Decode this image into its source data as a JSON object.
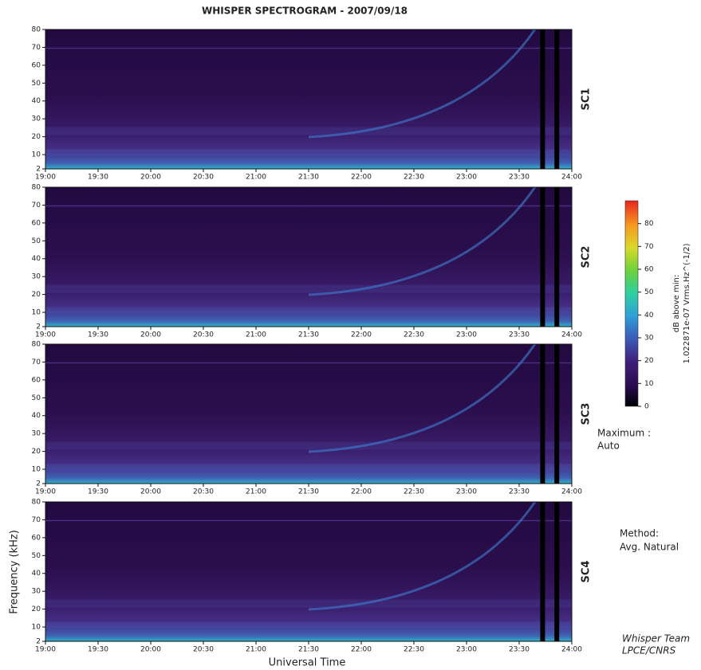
{
  "title": "WHISPER SPECTROGRAM - 2007/09/18",
  "y_label": "Frequency (kHz)",
  "x_label": "Universal Time",
  "chart_data": [
    {
      "type": "heatmap",
      "panel_label": "SC1",
      "xlim": [
        19,
        24
      ],
      "ylim": [
        2,
        80
      ],
      "xticks": [
        {
          "value": 19,
          "label": "19:00"
        },
        {
          "value": 19.5,
          "label": "19:30"
        },
        {
          "value": 20,
          "label": "20:00"
        },
        {
          "value": 20.5,
          "label": "20:30"
        },
        {
          "value": 21,
          "label": "21:00"
        },
        {
          "value": 21.5,
          "label": "21:30"
        },
        {
          "value": 22,
          "label": "22:00"
        },
        {
          "value": 22.5,
          "label": "22:30"
        },
        {
          "value": 23,
          "label": "23:00"
        },
        {
          "value": 23.5,
          "label": "23:30"
        },
        {
          "value": 24,
          "label": "24:00"
        }
      ],
      "yticks": [
        2,
        10,
        20,
        30,
        40,
        50,
        60,
        70,
        80
      ]
    },
    {
      "type": "heatmap",
      "panel_label": "SC2",
      "xlim": [
        19,
        24
      ],
      "ylim": [
        2,
        80
      ],
      "xticks": [
        {
          "value": 19,
          "label": "19:00"
        },
        {
          "value": 19.5,
          "label": "19:30"
        },
        {
          "value": 20,
          "label": "20:00"
        },
        {
          "value": 20.5,
          "label": "20:30"
        },
        {
          "value": 21,
          "label": "21:00"
        },
        {
          "value": 21.5,
          "label": "21:30"
        },
        {
          "value": 22,
          "label": "22:00"
        },
        {
          "value": 22.5,
          "label": "22:30"
        },
        {
          "value": 23,
          "label": "23:00"
        },
        {
          "value": 23.5,
          "label": "23:30"
        },
        {
          "value": 24,
          "label": "24:00"
        }
      ],
      "yticks": [
        2,
        10,
        20,
        30,
        40,
        50,
        60,
        70,
        80
      ]
    },
    {
      "type": "heatmap",
      "panel_label": "SC3",
      "xlim": [
        19,
        24
      ],
      "ylim": [
        2,
        80
      ],
      "xticks": [
        {
          "value": 19,
          "label": "19:00"
        },
        {
          "value": 19.5,
          "label": "19:30"
        },
        {
          "value": 20,
          "label": "20:00"
        },
        {
          "value": 20.5,
          "label": "20:30"
        },
        {
          "value": 21,
          "label": "21:00"
        },
        {
          "value": 21.5,
          "label": "21:30"
        },
        {
          "value": 22,
          "label": "22:00"
        },
        {
          "value": 22.5,
          "label": "22:30"
        },
        {
          "value": 23,
          "label": "23:00"
        },
        {
          "value": 23.5,
          "label": "23:30"
        },
        {
          "value": 24,
          "label": "24:00"
        }
      ],
      "yticks": [
        2,
        10,
        20,
        30,
        40,
        50,
        60,
        70,
        80
      ]
    },
    {
      "type": "heatmap",
      "panel_label": "SC4",
      "xlim": [
        19,
        24
      ],
      "ylim": [
        2,
        80
      ],
      "xticks": [
        {
          "value": 19,
          "label": "19:00"
        },
        {
          "value": 19.5,
          "label": "19:30"
        },
        {
          "value": 20,
          "label": "20:00"
        },
        {
          "value": 20.5,
          "label": "20:30"
        },
        {
          "value": 21,
          "label": "21:00"
        },
        {
          "value": 21.5,
          "label": "21:30"
        },
        {
          "value": 22,
          "label": "22:00"
        },
        {
          "value": 22.5,
          "label": "22:30"
        },
        {
          "value": 23,
          "label": "23:00"
        },
        {
          "value": 23.5,
          "label": "23:30"
        },
        {
          "value": 24,
          "label": "24:00"
        }
      ],
      "yticks": [
        2,
        10,
        20,
        30,
        40,
        50,
        60,
        70,
        80
      ]
    }
  ],
  "colorbar": {
    "label": [
      "dB above min:",
      "1.022871e-07 Vrms.Hz^(-1/2)"
    ],
    "lim": [
      0,
      90
    ],
    "ticks": [
      0,
      10,
      20,
      30,
      40,
      50,
      60,
      70,
      80
    ]
  },
  "maximum_note": [
    "Maximum :",
    "Auto"
  ],
  "method_note": [
    "Method:",
    "Avg. Natural"
  ],
  "credit": [
    "Whisper Team",
    "LPCE/CNRS"
  ]
}
